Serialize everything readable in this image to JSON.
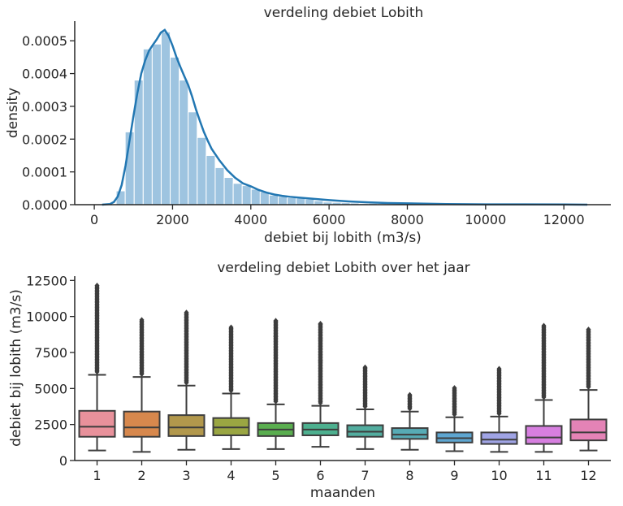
{
  "chart_data": [
    {
      "type": "histogram",
      "title": "verdeling debiet Lobith",
      "xlabel": "debiet bij lobith (m3/s)",
      "ylabel": "density",
      "xlim": [
        -500,
        13200
      ],
      "ylim": [
        0,
        0.00056
      ],
      "xticks": [
        0,
        2000,
        4000,
        6000,
        8000,
        10000,
        12000
      ],
      "xtick_labels": [
        "0",
        "2000",
        "4000",
        "6000",
        "8000",
        "10000",
        "12000"
      ],
      "yticks": [
        0,
        0.0001,
        0.0002,
        0.0003,
        0.0004,
        0.0005
      ],
      "ytick_labels": [
        "0.0000",
        "0.0001",
        "0.0002",
        "0.0003",
        "0.0004",
        "0.0005"
      ],
      "grid": false,
      "bar_color": "#9ec4e0",
      "line_color": "#2277b2",
      "bins": {
        "start": 560,
        "width": 230,
        "values": [
          4.2e-05,
          0.000222,
          0.00038,
          0.000475,
          0.00049,
          0.000527,
          0.00045,
          0.00038,
          0.000283,
          0.000205,
          0.00015,
          0.000113,
          8.3e-05,
          6.5e-05,
          5.8e-05,
          4.7e-05,
          3.9e-05,
          2.9e-05,
          2.5e-05,
          2.1e-05,
          2e-05,
          1.7e-05,
          1.2e-05,
          8e-06,
          7e-06,
          6e-06,
          5e-06,
          4e-06,
          4e-06,
          3e-06,
          2e-06,
          2e-06,
          2e-06,
          1e-06,
          1e-06,
          1e-06
        ]
      },
      "kde": {
        "x": [
          200,
          400,
          500,
          600,
          700,
          800,
          900,
          1000,
          1100,
          1200,
          1300,
          1400,
          1500,
          1600,
          1700,
          1800,
          1900,
          2000,
          2100,
          2200,
          2300,
          2400,
          2500,
          2600,
          2700,
          2800,
          2900,
          3000,
          3200,
          3400,
          3600,
          3800,
          4000,
          4200,
          4400,
          4600,
          4800,
          5000,
          5500,
          6000,
          6500,
          7000,
          7500,
          8000,
          9000,
          10000,
          11000,
          12000,
          12600
        ],
        "y": [
          0,
          2e-06,
          8e-06,
          2.5e-05,
          6e-05,
          0.00012,
          0.000195,
          0.00027,
          0.00034,
          0.0004,
          0.00044,
          0.00047,
          0.000488,
          0.000505,
          0.000525,
          0.000533,
          0.000515,
          0.000485,
          0.00045,
          0.00042,
          0.000392,
          0.000365,
          0.00033,
          0.00029,
          0.000255,
          0.000222,
          0.000195,
          0.00017,
          0.000135,
          0.000105,
          8.2e-05,
          6.5e-05,
          5.6e-05,
          4.5e-05,
          3.7e-05,
          3.1e-05,
          2.7e-05,
          2.4e-05,
          1.9e-05,
          1.4e-05,
          1e-05,
          7e-06,
          5e-06,
          4e-06,
          2e-06,
          1e-06,
          1e-06,
          5e-07,
          0
        ]
      }
    },
    {
      "type": "box",
      "title": "verdeling debiet Lobith over het jaar",
      "xlabel": "maanden",
      "ylabel": "debiet bij lobith (m3/s)",
      "ylim": [
        0,
        12800
      ],
      "yticks": [
        0,
        2500,
        5000,
        7500,
        10000,
        12500
      ],
      "ytick_labels": [
        "0",
        "2500",
        "5000",
        "7500",
        "10000",
        "12500"
      ],
      "categories": [
        "1",
        "2",
        "3",
        "4",
        "5",
        "6",
        "7",
        "8",
        "9",
        "10",
        "11",
        "12"
      ],
      "grid": false,
      "boxes": [
        {
          "color": "#e8919b",
          "whislo": 700,
          "q1": 1650,
          "med": 2350,
          "q3": 3450,
          "whishi": 5950,
          "fliers_max": 12200
        },
        {
          "color": "#d7884d",
          "whislo": 600,
          "q1": 1650,
          "med": 2300,
          "q3": 3400,
          "whishi": 5800,
          "fliers_max": 9800
        },
        {
          "color": "#b2984c",
          "whislo": 750,
          "q1": 1700,
          "med": 2300,
          "q3": 3150,
          "whishi": 5200,
          "fliers_max": 10300
        },
        {
          "color": "#9aa642",
          "whislo": 800,
          "q1": 1750,
          "med": 2300,
          "q3": 2950,
          "whishi": 4650,
          "fliers_max": 9300
        },
        {
          "color": "#5aae4f",
          "whislo": 800,
          "q1": 1700,
          "med": 2150,
          "q3": 2600,
          "whishi": 3900,
          "fliers_max": 9700
        },
        {
          "color": "#4db08f",
          "whislo": 950,
          "q1": 1750,
          "med": 2150,
          "q3": 2600,
          "whishi": 3800,
          "fliers_max": 9500
        },
        {
          "color": "#52ad9f",
          "whislo": 800,
          "q1": 1650,
          "med": 2000,
          "q3": 2450,
          "whishi": 3550,
          "fliers_max": 6500
        },
        {
          "color": "#57abb5",
          "whislo": 750,
          "q1": 1500,
          "med": 1800,
          "q3": 2250,
          "whishi": 3400,
          "fliers_max": 4600
        },
        {
          "color": "#5ea6d1",
          "whislo": 650,
          "q1": 1250,
          "med": 1550,
          "q3": 1950,
          "whishi": 3000,
          "fliers_max": 5100
        },
        {
          "color": "#a0a4e5",
          "whislo": 600,
          "q1": 1150,
          "med": 1450,
          "q3": 1950,
          "whishi": 3050,
          "fliers_max": 6400
        },
        {
          "color": "#d77fe0",
          "whislo": 600,
          "q1": 1150,
          "med": 1600,
          "q3": 2400,
          "whishi": 4200,
          "fliers_max": 9400
        },
        {
          "color": "#e483b6",
          "whislo": 700,
          "q1": 1400,
          "med": 1950,
          "q3": 2850,
          "whishi": 4900,
          "fliers_max": 9100
        }
      ],
      "extreme_fliers": [
        {
          "category": "5",
          "values": [
            8600,
            9700
          ]
        },
        {
          "category": "6",
          "values": [
            6900,
            8400,
            9500
          ]
        }
      ]
    }
  ]
}
